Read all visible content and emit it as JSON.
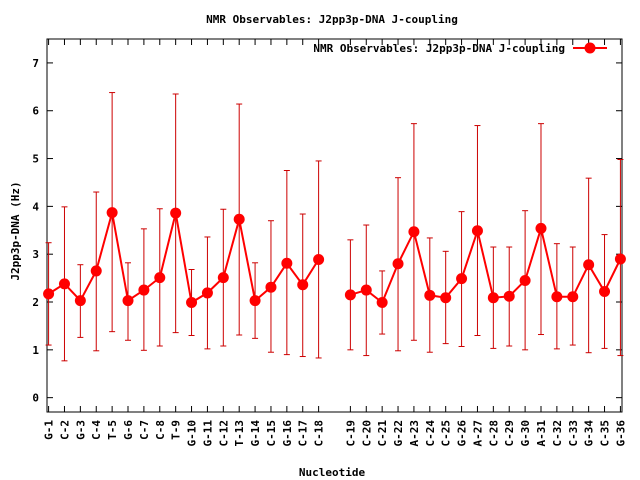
{
  "chart_data": {
    "type": "line",
    "title": "NMR Observables: J2pp3p-DNA J-coupling",
    "xlabel": "Nucleotide",
    "ylabel": "J2pp3p-DNA (Hz)",
    "ylim": [
      -0.3,
      7.5
    ],
    "yticks": [
      "0",
      "1",
      "2",
      "3",
      "4",
      "5",
      "6",
      "7"
    ],
    "legend": {
      "label": "NMR Observables: J2pp3p-DNA J-coupling",
      "position": "top-right"
    },
    "grid": false,
    "series_color": "#ff0000",
    "errorbar_color": "#cc0000",
    "points": [
      {
        "label": "G-1",
        "x": 1,
        "y": 2.17,
        "lo": 1.1,
        "hi": 3.24
      },
      {
        "label": "C-2",
        "x": 2,
        "y": 2.38,
        "lo": 0.77,
        "hi": 3.99
      },
      {
        "label": "G-3",
        "x": 3,
        "y": 2.03,
        "lo": 1.26,
        "hi": 2.78
      },
      {
        "label": "C-4",
        "x": 4,
        "y": 2.65,
        "lo": 0.98,
        "hi": 4.3
      },
      {
        "label": "T-5",
        "x": 5,
        "y": 3.87,
        "lo": 1.38,
        "hi": 6.38
      },
      {
        "label": "G-6",
        "x": 6,
        "y": 2.03,
        "lo": 1.2,
        "hi": 2.82
      },
      {
        "label": "C-7",
        "x": 7,
        "y": 2.25,
        "lo": 0.99,
        "hi": 3.53
      },
      {
        "label": "C-8",
        "x": 8,
        "y": 2.51,
        "lo": 1.08,
        "hi": 3.95
      },
      {
        "label": "T-9",
        "x": 9,
        "y": 3.86,
        "lo": 1.36,
        "hi": 6.35
      },
      {
        "label": "G-10",
        "x": 10,
        "y": 1.99,
        "lo": 1.3,
        "hi": 2.68
      },
      {
        "label": "G-11",
        "x": 11,
        "y": 2.19,
        "lo": 1.02,
        "hi": 3.36
      },
      {
        "label": "C-12",
        "x": 12,
        "y": 2.51,
        "lo": 1.08,
        "hi": 3.94
      },
      {
        "label": "T-13",
        "x": 13,
        "y": 3.73,
        "lo": 1.31,
        "hi": 6.14
      },
      {
        "label": "G-14",
        "x": 14,
        "y": 2.03,
        "lo": 1.24,
        "hi": 2.82
      },
      {
        "label": "C-15",
        "x": 15,
        "y": 2.31,
        "lo": 0.95,
        "hi": 3.7
      },
      {
        "label": "G-16",
        "x": 16,
        "y": 2.81,
        "lo": 0.9,
        "hi": 4.75
      },
      {
        "label": "C-17",
        "x": 17,
        "y": 2.36,
        "lo": 0.86,
        "hi": 3.84
      },
      {
        "label": "C-18",
        "x": 18,
        "y": 2.89,
        "lo": 0.83,
        "hi": 4.95
      },
      {
        "label": "C-19",
        "x": 20,
        "y": 2.15,
        "lo": 1.0,
        "hi": 3.3
      },
      {
        "label": "C-20",
        "x": 21,
        "y": 2.25,
        "lo": 0.88,
        "hi": 3.61
      },
      {
        "label": "C-21",
        "x": 22,
        "y": 1.99,
        "lo": 1.33,
        "hi": 2.65
      },
      {
        "label": "G-22",
        "x": 23,
        "y": 2.8,
        "lo": 0.98,
        "hi": 4.6
      },
      {
        "label": "A-23",
        "x": 24,
        "y": 3.47,
        "lo": 1.2,
        "hi": 5.73
      },
      {
        "label": "C-24",
        "x": 25,
        "y": 2.14,
        "lo": 0.95,
        "hi": 3.34
      },
      {
        "label": "C-25",
        "x": 26,
        "y": 2.09,
        "lo": 1.13,
        "hi": 3.06
      },
      {
        "label": "G-26",
        "x": 27,
        "y": 2.49,
        "lo": 1.07,
        "hi": 3.89
      },
      {
        "label": "A-27",
        "x": 28,
        "y": 3.49,
        "lo": 1.3,
        "hi": 5.69
      },
      {
        "label": "C-28",
        "x": 29,
        "y": 2.09,
        "lo": 1.03,
        "hi": 3.15
      },
      {
        "label": "C-29",
        "x": 30,
        "y": 2.12,
        "lo": 1.08,
        "hi": 3.15
      },
      {
        "label": "G-30",
        "x": 31,
        "y": 2.45,
        "lo": 1.0,
        "hi": 3.91
      },
      {
        "label": "A-31",
        "x": 32,
        "y": 3.54,
        "lo": 1.32,
        "hi": 5.73
      },
      {
        "label": "C-32",
        "x": 33,
        "y": 2.11,
        "lo": 1.02,
        "hi": 3.22
      },
      {
        "label": "C-33",
        "x": 34,
        "y": 2.11,
        "lo": 1.1,
        "hi": 3.15
      },
      {
        "label": "G-34",
        "x": 35,
        "y": 2.78,
        "lo": 0.94,
        "hi": 4.59
      },
      {
        "label": "C-35",
        "x": 36,
        "y": 2.22,
        "lo": 1.03,
        "hi": 3.41
      },
      {
        "label": "G-36",
        "x": 37,
        "y": 2.9,
        "lo": 0.88,
        "hi": 4.98
      }
    ]
  }
}
